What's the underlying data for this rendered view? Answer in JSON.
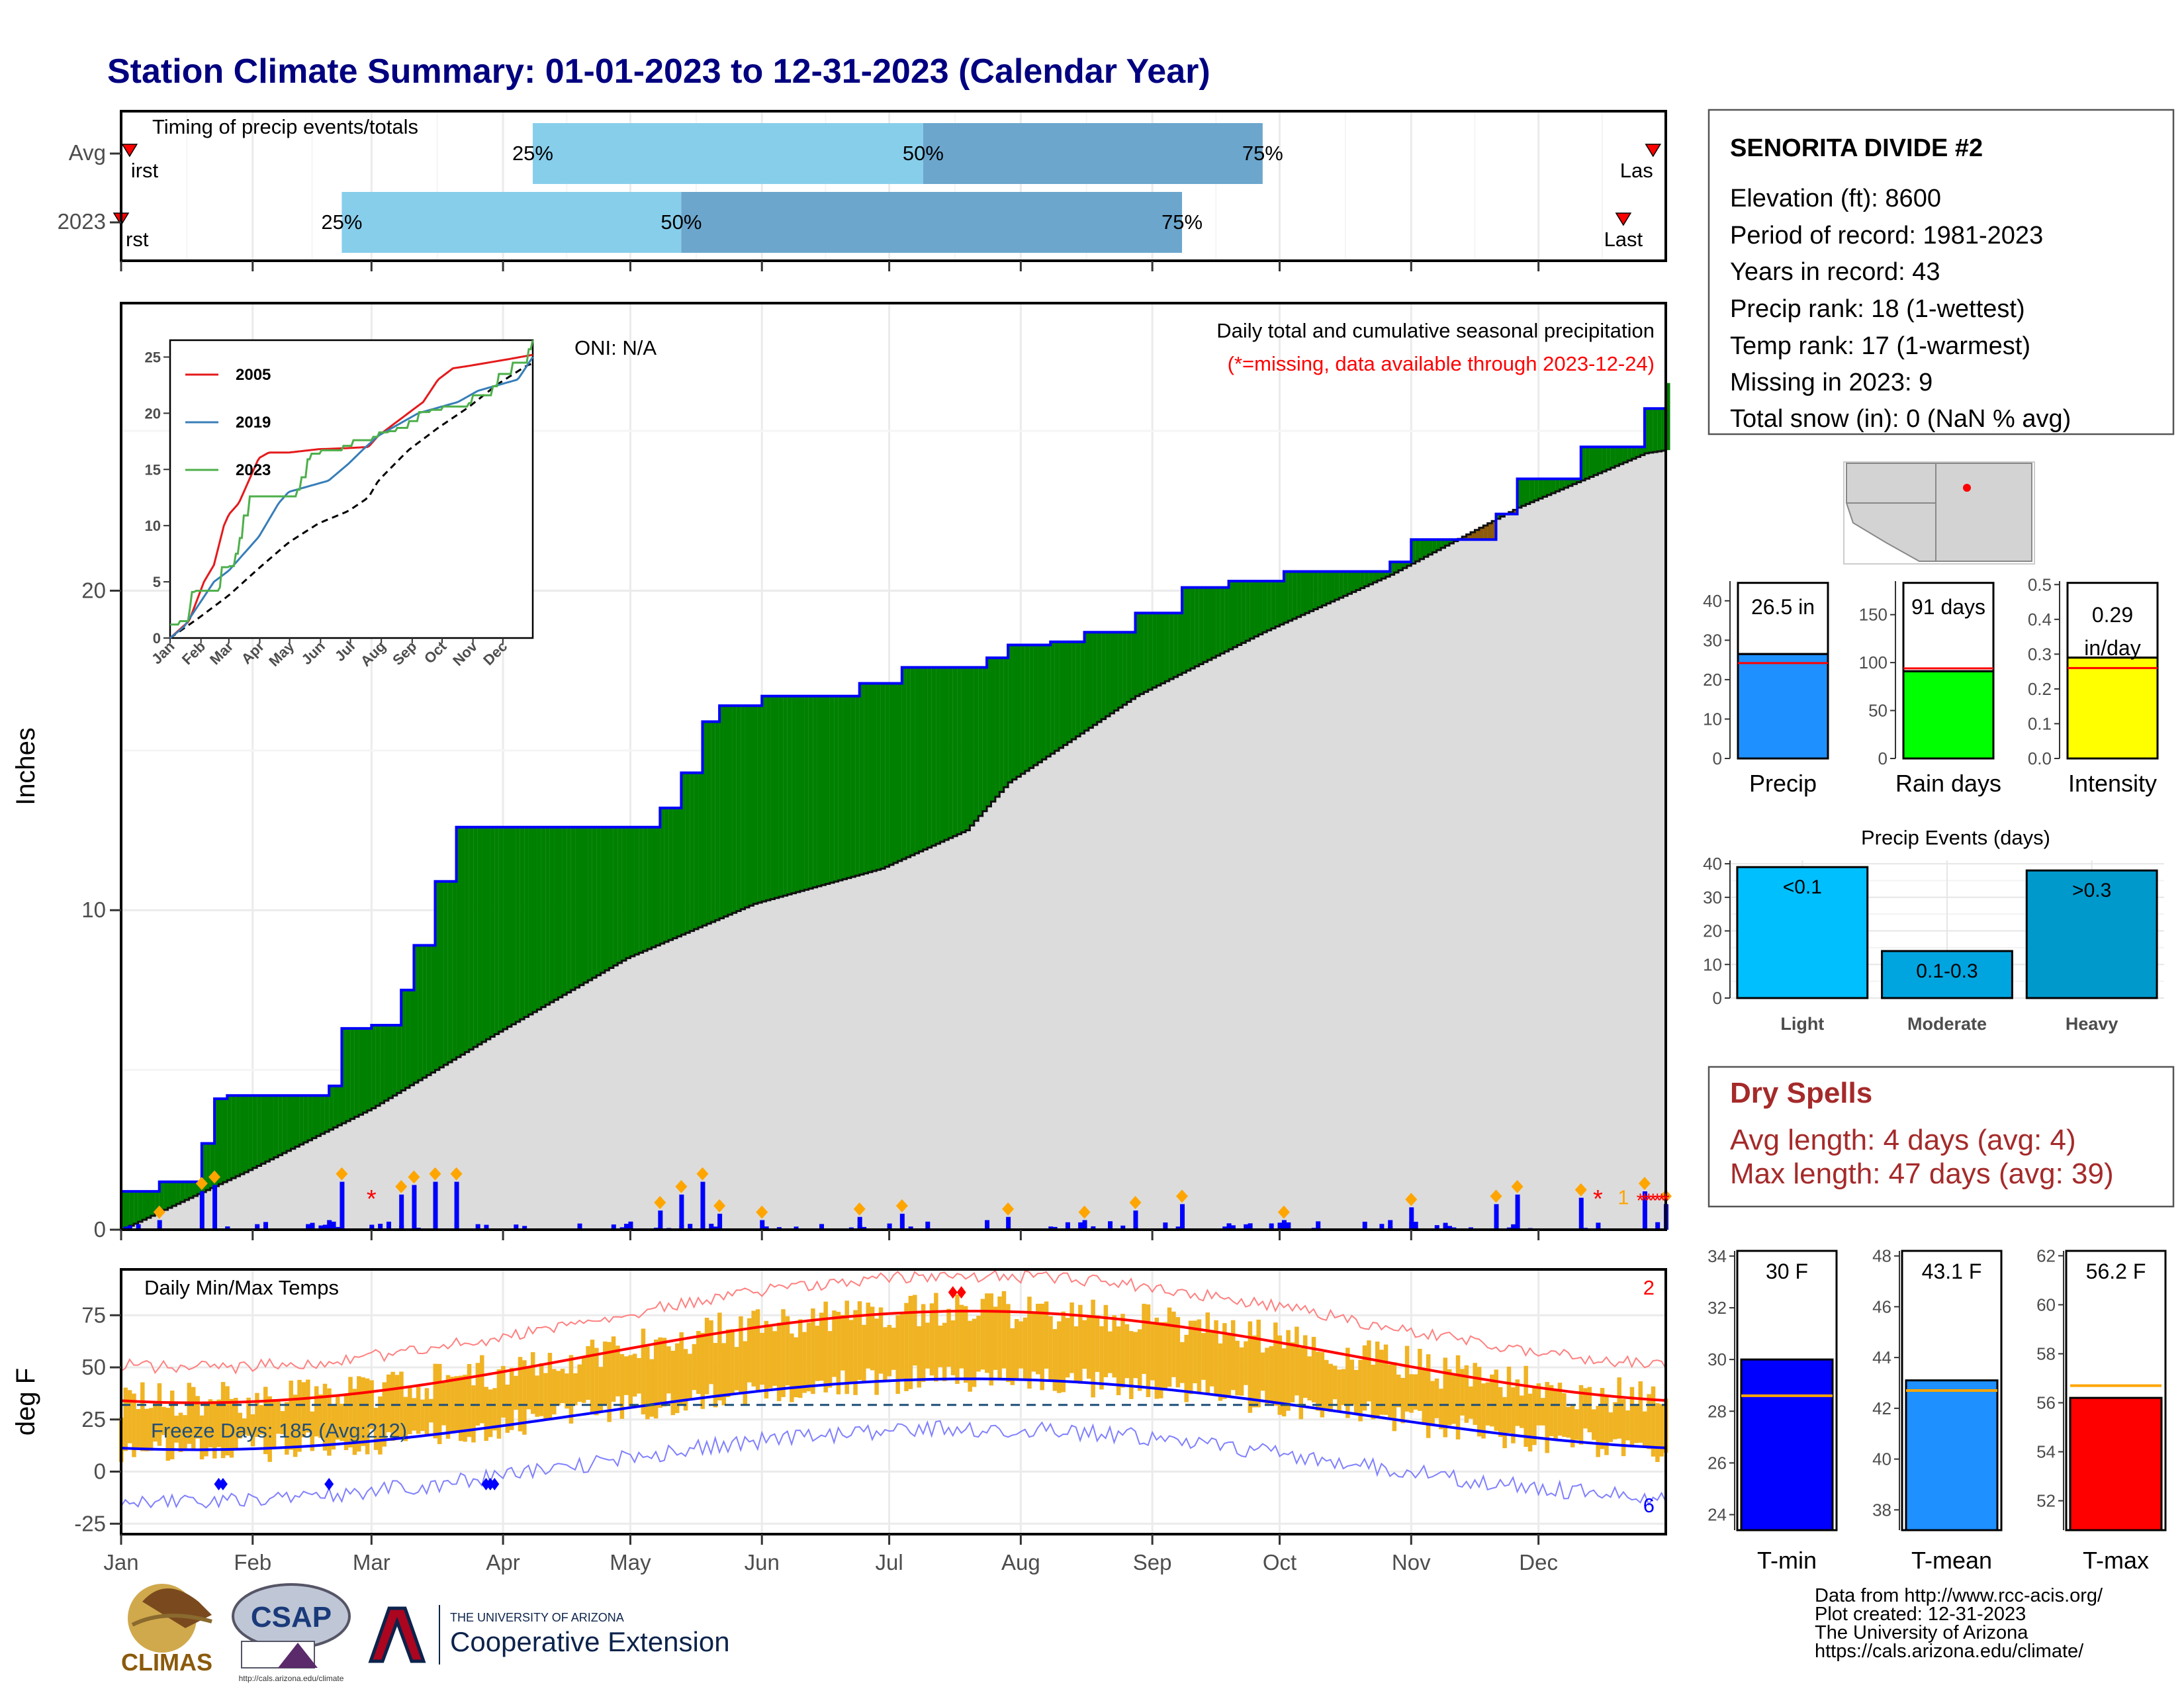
{
  "page": {
    "title": "Station Climate Summary: 01-01-2023 to 12-31-2023 (Calendar Year)"
  },
  "timing": {
    "label": "Timing of precip events/totals",
    "rows": [
      "Avg",
      "2023"
    ],
    "avg": {
      "first_doy": 3,
      "p25_doy": 98,
      "p50_doy": 190,
      "p75_doy": 270,
      "last_doy": 362
    },
    "y2023": {
      "first_doy": 1,
      "p25_doy": 53,
      "p50_doy": 133,
      "p75_doy": 251,
      "last_doy": 355
    },
    "pct_labels": [
      "25%",
      "50%",
      "75%"
    ],
    "first_label_avg": "irst",
    "last_label_avg": "Las",
    "first_label_2023": "rst",
    "last_label_2023": "Last"
  },
  "main_plot": {
    "ylabel": "Inches",
    "yticks": [
      0,
      10,
      20
    ],
    "ylim": [
      0,
      29
    ],
    "oni": "ONI: N/A",
    "desc": "Daily total and cumulative seasonal precipitation",
    "missing_note": "(*=missing, data available through 2023-12-24)",
    "missing_count_label": "1",
    "colors": {
      "above": "#008000",
      "below": "#8B5A0B",
      "avg": "#DCDCDC",
      "obs_line": "#0000FF"
    }
  },
  "inset": {
    "yticks": [
      0,
      5,
      10,
      15,
      20,
      25
    ],
    "months": [
      "Jan",
      "Feb",
      "Mar",
      "Apr",
      "May",
      "Jun",
      "Jul",
      "Aug",
      "Sep",
      "Oct",
      "Nov",
      "Dec"
    ],
    "legend": [
      {
        "name": "2005",
        "color": "#E41A1C"
      },
      {
        "name": "2019",
        "color": "#377EB8"
      },
      {
        "name": "2023",
        "color": "#4DAF4A"
      }
    ]
  },
  "temp_plot": {
    "ylabel": "deg F",
    "title": "Daily Min/Max Temps",
    "yticks": [
      -25,
      0,
      25,
      50,
      75
    ],
    "ylim": [
      -30,
      97
    ],
    "freeze_text": "Freeze Days: 185 (Avg:212)",
    "record_high_count": "2",
    "record_low_count": "6",
    "freeze_line": 32
  },
  "months": [
    "Jan",
    "Feb",
    "Mar",
    "Apr",
    "May",
    "Jun",
    "Jul",
    "Aug",
    "Sep",
    "Oct",
    "Nov",
    "Dec"
  ],
  "station": {
    "name": "SENORITA DIVIDE #2",
    "lines": [
      "Elevation (ft): 8600",
      "Period of record: 1981-2023",
      "Years in record: 43",
      "Precip rank: 18 (1-wettest)",
      "Temp rank: 17 (1-warmest)",
      "Missing in 2023: 9",
      "Total snow (in): 0 (NaN % avg)"
    ]
  },
  "bars_precip": {
    "precip": {
      "label": "Precip",
      "value_text": "26.5 in",
      "value": 26.5,
      "avg": 24.2,
      "ymax": 45,
      "ticks": [
        0,
        10,
        20,
        30,
        40
      ],
      "color": "#1E90FF"
    },
    "rain_days": {
      "label": "Rain days",
      "value_text": "91 days",
      "value": 91,
      "avg": 94,
      "ymax": 185,
      "ticks": [
        0,
        50,
        100,
        150
      ],
      "color": "#00FF00"
    },
    "intensity": {
      "label": "Intensity",
      "value_text_1": "0.29",
      "value_text_2": "in/day",
      "value": 0.29,
      "avg": 0.26,
      "ymax": 0.51,
      "ticks": [
        "0.0",
        "0.1",
        "0.2",
        "0.3",
        "0.4",
        "0.5"
      ],
      "color": "#FFFF00"
    }
  },
  "precip_events": {
    "title": "Precip Events (days)",
    "ticks": [
      0,
      10,
      20,
      30,
      40
    ],
    "ymax": 41,
    "categories": [
      "Light",
      "Moderate",
      "Heavy"
    ],
    "labels": [
      "<0.1",
      "0.1-0.3",
      ">0.3"
    ],
    "values": [
      39,
      14,
      38
    ],
    "colors": [
      "#00BFFF",
      "#00A5E0",
      "#0099CC"
    ]
  },
  "dry_spells": {
    "title": "Dry Spells",
    "avg_line": "Avg length: 4 days (avg: 4)",
    "max_line": "Max length: 47 days (avg: 39)"
  },
  "temp_bars": {
    "tmin": {
      "label": "T-min",
      "value_text": "30 F",
      "value": 30,
      "avg": 28.6,
      "ymin": 23.4,
      "ymax": 34.2,
      "ticks": [
        24,
        26,
        28,
        30,
        32,
        34
      ],
      "color": "#0000FF"
    },
    "tmean": {
      "label": "T-mean",
      "value_text": "43.1 F",
      "value": 43.1,
      "avg": 42.7,
      "ymin": 37.2,
      "ymax": 48.2,
      "ticks": [
        38,
        40,
        42,
        44,
        46,
        48
      ],
      "color": "#1E90FF"
    },
    "tmax": {
      "label": "T-max",
      "value_text": "56.2 F",
      "value": 56.2,
      "avg": 56.7,
      "ymin": 50.8,
      "ymax": 62.2,
      "ticks": [
        52,
        54,
        56,
        58,
        60,
        62
      ],
      "color": "#FF0000"
    }
  },
  "footer": {
    "lines": [
      "Data from http://www.rcc-acis.org/",
      "Plot created: 12-31-2023",
      "The University of Arizona",
      "https://cals.arizona.edu/climate/"
    ]
  },
  "logos": {
    "climas": "CLIMAS",
    "csap": "CSAP",
    "csap_url": "http://cals.arizona.edu/climate",
    "ua_small": "THE UNIVERSITY OF ARIZONA",
    "ua_big": "Cooperative Extension"
  },
  "chart_data": {
    "type": "area",
    "title": "Daily total and cumulative seasonal precipitation",
    "ylabel": "Inches",
    "ylim": [
      0,
      29
    ],
    "cumulative_observed": {
      "doy": [
        1,
        10,
        20,
        23,
        26,
        40,
        50,
        53,
        60,
        67,
        70,
        75,
        80,
        88,
        98,
        128,
        133,
        138,
        142,
        152,
        160,
        175,
        185,
        205,
        210,
        220,
        228,
        240,
        251,
        262,
        275,
        300,
        305,
        325,
        330,
        345,
        360,
        365
      ],
      "value": [
        1.2,
        1.5,
        2.7,
        4.1,
        4.2,
        4.2,
        4.5,
        6.3,
        6.4,
        7.5,
        8.9,
        10.9,
        12.6,
        12.6,
        12.6,
        13.2,
        14.3,
        15.9,
        16.4,
        16.7,
        16.7,
        17.1,
        17.6,
        17.9,
        18.3,
        18.4,
        18.7,
        19.3,
        20.1,
        20.3,
        20.6,
        20.9,
        21.6,
        22.4,
        23.5,
        24.5,
        25.7,
        26.5
      ]
    },
    "cumulative_average": {
      "doy": [
        1,
        30,
        60,
        90,
        120,
        150,
        180,
        200,
        210,
        240,
        270,
        300,
        330,
        360,
        365
      ],
      "value": [
        0,
        1.8,
        3.8,
        6.2,
        8.5,
        10.2,
        11.3,
        12.5,
        14.0,
        16.7,
        18.7,
        20.5,
        22.6,
        24.3,
        24.4
      ]
    }
  }
}
